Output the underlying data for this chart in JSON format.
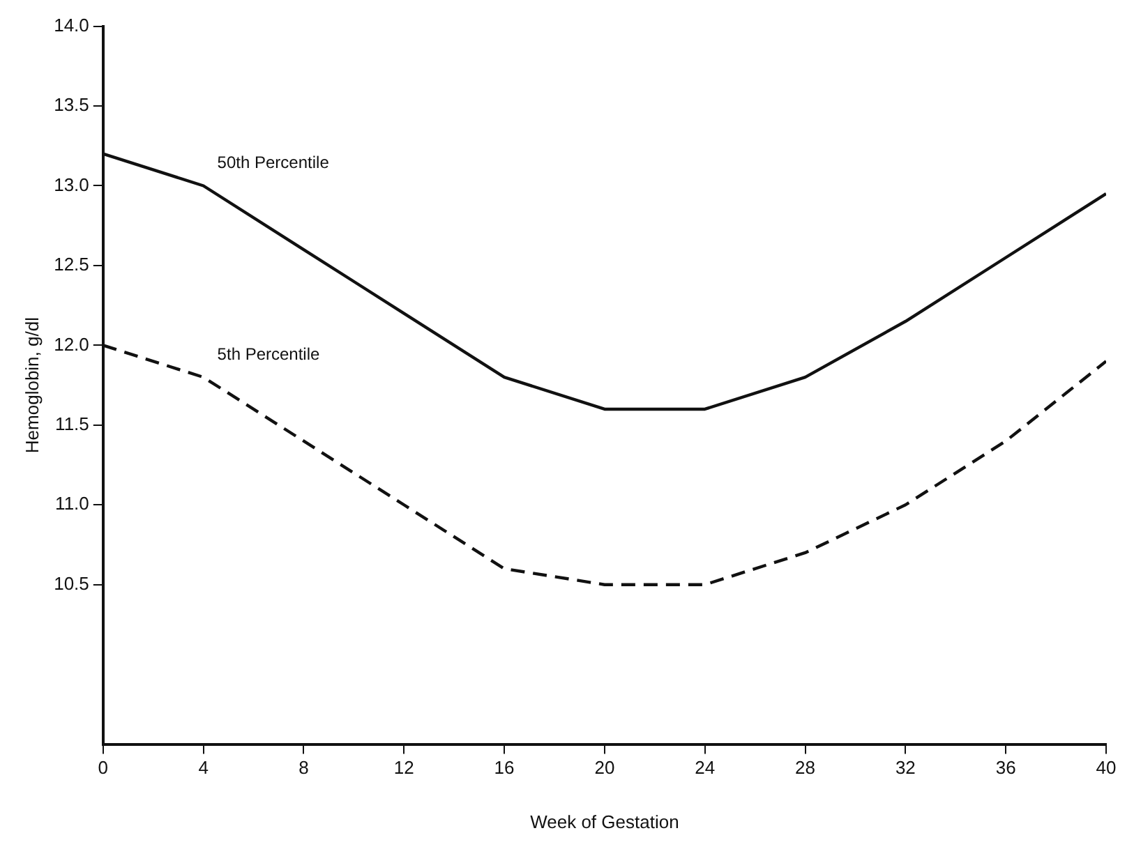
{
  "chart_data": {
    "type": "line",
    "xlabel": "Week of Gestation",
    "ylabel": "Hemoglobin, g/dl",
    "x": [
      0,
      4,
      8,
      12,
      16,
      20,
      24,
      28,
      32,
      36,
      40
    ],
    "series": [
      {
        "name": "50th Percentile",
        "color": "#111111",
        "line_style": "solid",
        "values": [
          13.2,
          13.0,
          12.6,
          12.2,
          11.8,
          11.6,
          11.6,
          11.8,
          12.15,
          12.55,
          12.95
        ]
      },
      {
        "name": "5th Percentile",
        "color": "#111111",
        "line_style": "dashed",
        "values": [
          12.0,
          11.8,
          11.4,
          11.0,
          10.6,
          10.5,
          10.5,
          10.7,
          11.0,
          11.4,
          11.9
        ]
      }
    ],
    "xlim": [
      0,
      40
    ],
    "xticks": [
      0,
      4,
      8,
      12,
      16,
      20,
      24,
      28,
      32,
      36,
      40
    ],
    "ylim": [
      9.5,
      14.0
    ],
    "yticks": [
      {
        "value": 10.5,
        "label": "10.5"
      },
      {
        "value": 11.0,
        "label": "11.0"
      },
      {
        "value": 11.5,
        "label": "11.5"
      },
      {
        "value": 12.0,
        "label": "12.0"
      },
      {
        "value": 12.5,
        "label": "12.5"
      },
      {
        "value": 13.0,
        "label": "13.0"
      },
      {
        "value": 13.5,
        "label": "13.5"
      },
      {
        "value": 14.0,
        "label": "14.0"
      }
    ],
    "grid": false,
    "legend": false,
    "marker": "none"
  }
}
